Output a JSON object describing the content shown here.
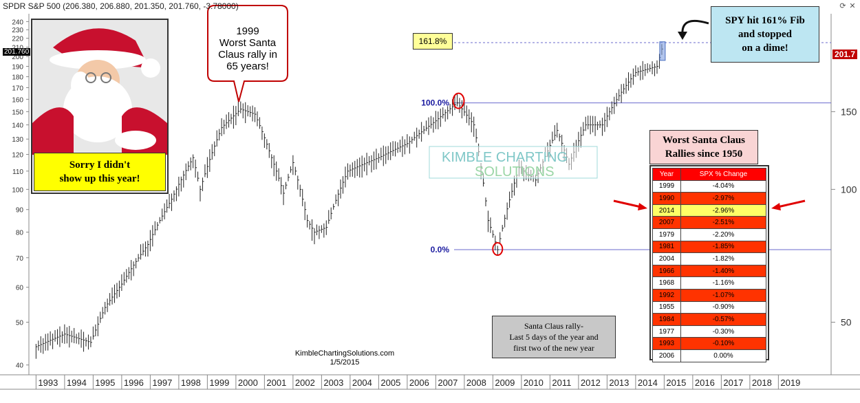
{
  "header": {
    "title": "SPDR S&P 500 (206.380, 206.880, 201.350, 201.760, -3.78000)"
  },
  "price_tags": {
    "left": "201.760",
    "right": "201.7"
  },
  "santa_panel": {
    "caption_line1": "Sorry I didn't",
    "caption_line2": "show up this year!"
  },
  "callout_1999": [
    "1999",
    "Worst Santa",
    "Claus rally in",
    "65 years!"
  ],
  "fib_box": {
    "label": "161.8%"
  },
  "fib_levels": [
    {
      "label": "100.0%",
      "value": 157
    },
    {
      "label": "0.0%",
      "value": 73
    }
  ],
  "fib_161_value": 215,
  "spy_callout": [
    "SPY hit 161% Fib",
    "and stopped",
    "on a dime!"
  ],
  "watermark": {
    "line1": "KIMBLE CHARTING",
    "line2": "SOLUTIONS"
  },
  "source": {
    "site": "KimbleChartingSolutions.com",
    "date": "1/5/2015"
  },
  "rally_note": [
    "Santa Claus rally-",
    "Last 5 days of the year and",
    "first two of the new year"
  ],
  "worst_table": {
    "title_line1": "Worst Santa Claus",
    "title_line2": "Rallies since 1950",
    "columns": [
      "Year",
      "SPX % Change"
    ],
    "rows": [
      {
        "year": "1999",
        "change": "-4.04%",
        "color": "#ffffff"
      },
      {
        "year": "1990",
        "change": "-2.97%",
        "color": "#ff3300"
      },
      {
        "year": "2014",
        "change": "-2.96%",
        "color": "#ffff66"
      },
      {
        "year": "2007",
        "change": "-2.51%",
        "color": "#ff3300"
      },
      {
        "year": "1979",
        "change": "-2.20%",
        "color": "#ffffff"
      },
      {
        "year": "1981",
        "change": "-1.85%",
        "color": "#ff3300"
      },
      {
        "year": "2004",
        "change": "-1.82%",
        "color": "#ffffff"
      },
      {
        "year": "1966",
        "change": "-1.40%",
        "color": "#ff3300"
      },
      {
        "year": "1968",
        "change": "-1.16%",
        "color": "#ffffff"
      },
      {
        "year": "1992",
        "change": "-1.07%",
        "color": "#ff3300"
      },
      {
        "year": "1955",
        "change": "-0.90%",
        "color": "#ffffff"
      },
      {
        "year": "1984",
        "change": "-0.57%",
        "color": "#ff3300"
      },
      {
        "year": "1977",
        "change": "-0.30%",
        "color": "#ffffff"
      },
      {
        "year": "1993",
        "change": "-0.10%",
        "color": "#ff3300"
      },
      {
        "year": "2006",
        "change": "0.00%",
        "color": "#ffffff"
      }
    ]
  },
  "chart_data": {
    "type": "bar",
    "title": "SPDR S&P 500",
    "scale": "log",
    "ylim": [
      38,
      250
    ],
    "left_ticks": [
      40,
      50,
      60,
      70,
      80,
      90,
      100,
      110,
      120,
      130,
      140,
      150,
      160,
      170,
      180,
      190,
      200,
      210,
      220,
      230,
      240
    ],
    "right_ticks": [
      50,
      100,
      150
    ],
    "x_years": [
      "1993",
      "1994",
      "1995",
      "1996",
      "1997",
      "1998",
      "1999",
      "2000",
      "2001",
      "2002",
      "2003",
      "2004",
      "2005",
      "2006",
      "2007",
      "2008",
      "2009",
      "2010",
      "2011",
      "2012",
      "2013",
      "2014",
      "2015",
      "2016",
      "2017",
      "2018",
      "2019"
    ],
    "price_path": [
      [
        "1993-01",
        44
      ],
      [
        "1994-01",
        47
      ],
      [
        "1994-12",
        45
      ],
      [
        "1995-06",
        54
      ],
      [
        "1996-01",
        61
      ],
      [
        "1996-12",
        75
      ],
      [
        "1997-10",
        95
      ],
      [
        "1998-07",
        118
      ],
      [
        "1998-10",
        100
      ],
      [
        "1999-07",
        138
      ],
      [
        "2000-03",
        152
      ],
      [
        "2000-09",
        148
      ],
      [
        "2001-04",
        118
      ],
      [
        "2001-09",
        98
      ],
      [
        "2002-01",
        115
      ],
      [
        "2002-07",
        85
      ],
      [
        "2002-10",
        80
      ],
      [
        "2003-03",
        82
      ],
      [
        "2003-12",
        110
      ],
      [
        "2005-01",
        118
      ],
      [
        "2006-01",
        127
      ],
      [
        "2007-01",
        143
      ],
      [
        "2007-10",
        157
      ],
      [
        "2008-05",
        140
      ],
      [
        "2008-11",
        85
      ],
      [
        "2009-03",
        73
      ],
      [
        "2009-12",
        112
      ],
      [
        "2010-07",
        105
      ],
      [
        "2011-04",
        136
      ],
      [
        "2011-09",
        114
      ],
      [
        "2012-04",
        140
      ],
      [
        "2012-11",
        140
      ],
      [
        "2013-06",
        163
      ],
      [
        "2014-01",
        184
      ],
      [
        "2014-10",
        190
      ],
      [
        "2014-12",
        208
      ]
    ],
    "grid": false,
    "legend": "none"
  }
}
